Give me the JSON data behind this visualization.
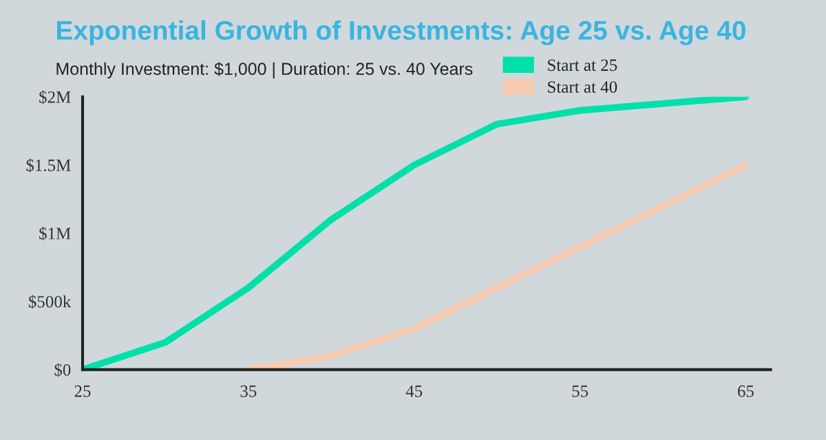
{
  "chart_data": {
    "type": "line",
    "title": "Exponential Growth of Investments: Age 25 vs. Age 40",
    "subtitle": "Monthly Investment: $1,000 | Duration: 25 vs. 40 Years",
    "series": [
      {
        "name": "Start at 25",
        "color": "#00e0a8",
        "x": [
          25,
          30,
          35,
          40,
          45,
          50,
          55,
          65
        ],
        "values": [
          0,
          200000,
          600000,
          1100000,
          1500000,
          1800000,
          1900000,
          2000000
        ]
      },
      {
        "name": "Start at 40",
        "color": "#f8ccb0",
        "x": [
          35,
          40,
          45,
          50,
          55,
          60,
          65
        ],
        "values": [
          0,
          100000,
          300000,
          600000,
          900000,
          1200000,
          1500000
        ]
      }
    ],
    "xlim": [
      25,
      66.5
    ],
    "xticks": [
      25,
      35,
      45,
      55,
      65
    ],
    "ylim": [
      0,
      2000000
    ],
    "yticks": [
      {
        "value": 0,
        "label": "$0"
      },
      {
        "value": 500000,
        "label": "$500k"
      },
      {
        "value": 1000000,
        "label": "$1M"
      },
      {
        "value": 1500000,
        "label": "$1.5M"
      },
      {
        "value": 2000000,
        "label": "$2M"
      }
    ],
    "grid": false,
    "legend": "top right",
    "line_style": "solid",
    "marker": "none"
  }
}
